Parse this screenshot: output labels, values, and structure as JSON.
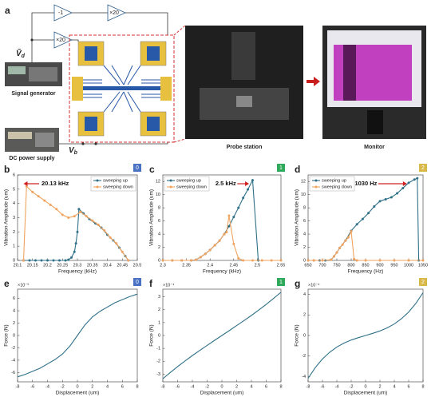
{
  "panel_a": {
    "label": "a",
    "amp1": "-1",
    "amp2": "×20",
    "amp3": "×20",
    "vd": "Ṽ",
    "vd_sub": "d",
    "vb": "V",
    "vb_sub": "b",
    "signal_generator": "Signal generator",
    "dc_power_supply": "DC power supply",
    "probe_station": "Probe station",
    "monitor": "Monitor"
  },
  "chart_data": [
    {
      "type": "line",
      "panel": "b",
      "badge": "0",
      "badge_color": "#4a72c4",
      "xlabel": "Frequency (kHz)",
      "ylabel": "Vibration Amplitude (um)",
      "xlim": [
        20.1,
        20.5
      ],
      "xticks": [
        20.1,
        20.15,
        20.2,
        20.25,
        20.3,
        20.35,
        20.4,
        20.45,
        20.5
      ],
      "ylim": [
        0,
        6
      ],
      "yticks": [
        0,
        1,
        2,
        3,
        4,
        5,
        6
      ],
      "annotation": "20.13 kHz",
      "legend": "upper right",
      "markers": true,
      "series": [
        {
          "name": "sweeping up",
          "color": "#2f7088",
          "x": [
            20.12,
            20.14,
            20.16,
            20.18,
            20.2,
            20.22,
            20.24,
            20.26,
            20.27,
            20.28,
            20.29,
            20.295,
            20.3,
            20.305,
            20.32,
            20.34,
            20.36,
            20.38,
            20.4,
            20.42,
            20.44,
            20.46,
            20.47
          ],
          "values": [
            0,
            0,
            0,
            0,
            0,
            0,
            0,
            0,
            0.05,
            0.2,
            0.6,
            1.2,
            2.0,
            3.6,
            3.3,
            2.9,
            2.6,
            2.3,
            1.8,
            1.4,
            0.9,
            0.3,
            0
          ]
        },
        {
          "name": "sweeping down",
          "color": "#f0a35e",
          "x": [
            20.47,
            20.45,
            20.43,
            20.41,
            20.39,
            20.37,
            20.35,
            20.33,
            20.31,
            20.29,
            20.27,
            20.25,
            20.23,
            20.21,
            20.19,
            20.17,
            20.15,
            20.13,
            20.12
          ],
          "values": [
            0,
            0.6,
            1.2,
            1.6,
            2.1,
            2.5,
            2.8,
            3.1,
            3.4,
            3.1,
            3.0,
            3.2,
            3.6,
            3.9,
            4.2,
            4.5,
            4.8,
            5.2,
            0
          ]
        }
      ]
    },
    {
      "type": "line",
      "panel": "c",
      "badge": "1",
      "badge_color": "#2eaa5a",
      "xlabel": "Frequency (kHz)",
      "ylabel": "Vibration Amplitude (um)",
      "xlim": [
        2.3,
        2.55
      ],
      "xticks": [
        2.3,
        2.35,
        2.4,
        2.45,
        2.5,
        2.55
      ],
      "ylim": [
        0,
        13
      ],
      "yticks": [
        0,
        2,
        4,
        6,
        8,
        10,
        12
      ],
      "annotation": "2.5 kHz",
      "legend": "upper left",
      "markers": true,
      "series": [
        {
          "name": "sweeping up",
          "color": "#2f7088",
          "x": [
            2.3,
            2.32,
            2.34,
            2.36,
            2.37,
            2.38,
            2.39,
            2.4,
            2.41,
            2.42,
            2.43,
            2.44,
            2.45,
            2.46,
            2.47,
            2.48,
            2.49,
            2.502
          ],
          "values": [
            0,
            0,
            0,
            0,
            0.1,
            0.5,
            1.0,
            1.6,
            2.3,
            3.0,
            4.0,
            5.2,
            6.6,
            8.0,
            9.5,
            10.8,
            12.2,
            0
          ]
        },
        {
          "name": "sweeping down",
          "color": "#f0a35e",
          "x": [
            2.55,
            2.53,
            2.51,
            2.49,
            2.47,
            2.46,
            2.45,
            2.44,
            2.435,
            2.43,
            2.42,
            2.41,
            2.4,
            2.39,
            2.38,
            2.37,
            2.36,
            2.34,
            2.32,
            2.3
          ],
          "values": [
            0,
            0,
            0,
            0,
            0,
            0.3,
            2.5,
            6.8,
            4.3,
            4.0,
            3.0,
            2.3,
            1.6,
            1.0,
            0.5,
            0.1,
            0,
            0,
            0,
            0
          ]
        }
      ]
    },
    {
      "type": "line",
      "panel": "d",
      "badge": "2",
      "badge_color": "#d9b84a",
      "xlabel": "Frequency (Hz)",
      "ylabel": "Vibration Amplitude (um)",
      "xlim": [
        650,
        1050
      ],
      "xticks": [
        650,
        700,
        750,
        800,
        850,
        900,
        950,
        1000,
        1050
      ],
      "ylim": [
        0,
        13
      ],
      "yticks": [
        0,
        2,
        4,
        6,
        8,
        10,
        12
      ],
      "annotation": "1030 Hz",
      "legend": "upper left",
      "markers": true,
      "series": [
        {
          "name": "sweeping up",
          "color": "#2f7088",
          "x": [
            650,
            670,
            690,
            710,
            730,
            740,
            750,
            760,
            780,
            800,
            820,
            840,
            860,
            880,
            900,
            920,
            940,
            960,
            980,
            1000,
            1020,
            1030,
            1035
          ],
          "values": [
            0,
            0,
            0,
            0,
            0.1,
            0.6,
            1.2,
            1.9,
            3.0,
            4.5,
            5.5,
            6.3,
            7.2,
            8.2,
            9.0,
            9.3,
            9.6,
            10.2,
            11.0,
            11.8,
            12.3,
            12.5,
            0
          ]
        },
        {
          "name": "sweeping down",
          "color": "#f0a35e",
          "x": [
            1050,
            1000,
            950,
            900,
            850,
            820,
            810,
            800,
            790,
            780,
            770,
            760,
            750,
            740,
            730,
            700,
            670,
            650
          ],
          "values": [
            0,
            0,
            0,
            0,
            0,
            0,
            0.2,
            4.4,
            3.5,
            3.0,
            2.4,
            1.9,
            1.2,
            0.6,
            0.1,
            0,
            0,
            0
          ]
        }
      ]
    },
    {
      "type": "line",
      "panel": "e",
      "badge": "0",
      "badge_color": "#4a72c4",
      "xlabel": "Displacement (um)",
      "ylabel": "Force (N)",
      "y_scale_label": "×10⁻⁵",
      "xlim": [
        -8,
        8
      ],
      "xticks": [
        -8,
        -6,
        -4,
        -2,
        0,
        2,
        4,
        6,
        8
      ],
      "ylim": [
        -7.5,
        7.5
      ],
      "yticks": [
        -6,
        -4,
        -2,
        0,
        2,
        4,
        6
      ],
      "color": "#2f7088",
      "x": [
        -8,
        -7,
        -6,
        -5,
        -4,
        -3,
        -2,
        -1,
        0,
        1,
        2,
        3,
        4,
        5,
        6,
        7,
        8
      ],
      "values": [
        -6.7,
        -6.3,
        -5.8,
        -5.3,
        -4.6,
        -3.9,
        -3.0,
        -1.7,
        0,
        1.7,
        3.0,
        3.9,
        4.6,
        5.3,
        5.8,
        6.3,
        6.7
      ]
    },
    {
      "type": "line",
      "panel": "f",
      "badge": "1",
      "badge_color": "#2eaa5a",
      "xlabel": "Displacement (um)",
      "ylabel": "Force (N)",
      "y_scale_label": "×10⁻⁴",
      "xlim": [
        -8,
        8
      ],
      "xticks": [
        -8,
        -6,
        -4,
        -2,
        0,
        2,
        4,
        6,
        8
      ],
      "ylim": [
        -3.6,
        3.6
      ],
      "yticks": [
        -3,
        -2,
        -1,
        0,
        1,
        2,
        3
      ],
      "color": "#2f7088",
      "x": [
        -8,
        -7,
        -6,
        -5,
        -4,
        -3,
        -2,
        -1,
        0,
        1,
        2,
        3,
        4,
        5,
        6,
        7,
        8
      ],
      "values": [
        -3.36,
        -2.88,
        -2.42,
        -1.98,
        -1.56,
        -1.16,
        -0.77,
        -0.38,
        0,
        0.38,
        0.77,
        1.16,
        1.56,
        1.98,
        2.42,
        2.88,
        3.36
      ]
    },
    {
      "type": "line",
      "panel": "g",
      "badge": "2",
      "badge_color": "#d9b84a",
      "xlabel": "Displacement (um)",
      "ylabel": "Force (N)",
      "y_scale_label": "×10⁻⁴",
      "xlim": [
        -8,
        8
      ],
      "xticks": [
        -8,
        -6,
        -4,
        -2,
        0,
        2,
        4,
        6,
        8
      ],
      "ylim": [
        -4.5,
        4.5
      ],
      "yticks": [
        -4,
        -2,
        0,
        2,
        4
      ],
      "color": "#2f7088",
      "x": [
        -8,
        -7,
        -6,
        -5,
        -4,
        -3,
        -2,
        -1,
        0,
        1,
        2,
        3,
        4,
        5,
        6,
        7,
        8
      ],
      "values": [
        -4.16,
        -3.12,
        -2.28,
        -1.63,
        -1.12,
        -0.74,
        -0.44,
        -0.21,
        0,
        0.21,
        0.44,
        0.74,
        1.12,
        1.63,
        2.28,
        3.12,
        4.16
      ]
    }
  ]
}
